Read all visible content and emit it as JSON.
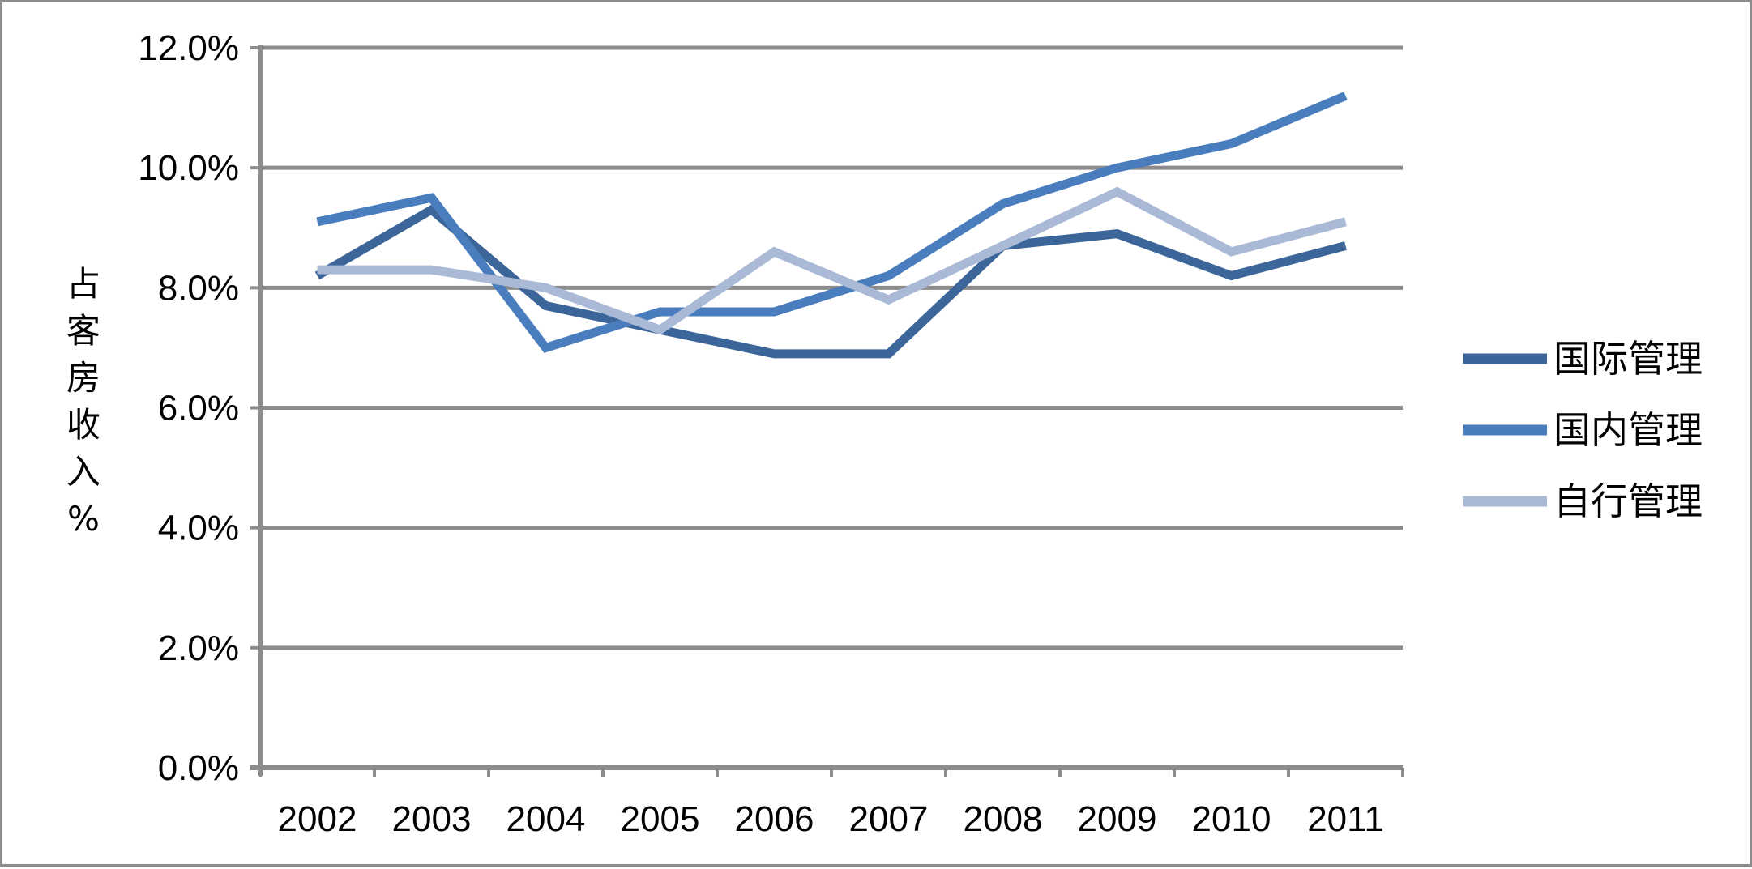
{
  "chart_data": {
    "type": "line",
    "categories": [
      "2002",
      "2003",
      "2004",
      "2005",
      "2006",
      "2007",
      "2008",
      "2009",
      "2010",
      "2011"
    ],
    "series": [
      {
        "name": "国际管理",
        "color": "#3c6699",
        "values": [
          8.2,
          9.3,
          7.7,
          7.3,
          6.9,
          6.9,
          8.7,
          8.9,
          8.2,
          8.7
        ]
      },
      {
        "name": "国内管理",
        "color": "#4a7dbd",
        "values": [
          9.1,
          9.5,
          7.0,
          7.6,
          7.6,
          8.2,
          9.4,
          10.0,
          10.4,
          11.2
        ]
      },
      {
        "name": "自行管理",
        "color": "#a9b9d6",
        "values": [
          8.3,
          8.3,
          8.0,
          7.3,
          8.6,
          7.8,
          8.7,
          9.6,
          8.6,
          9.1
        ]
      }
    ],
    "title": "",
    "xlabel": "",
    "ylabel": "占客房收入%",
    "ylim": [
      0,
      12
    ],
    "yticks": [
      "0.0%",
      "2.0%",
      "4.0%",
      "6.0%",
      "8.0%",
      "10.0%",
      "12.0%"
    ],
    "grid": "horizontal",
    "legend_position": "right",
    "grid_color": "#8c8c8c"
  }
}
